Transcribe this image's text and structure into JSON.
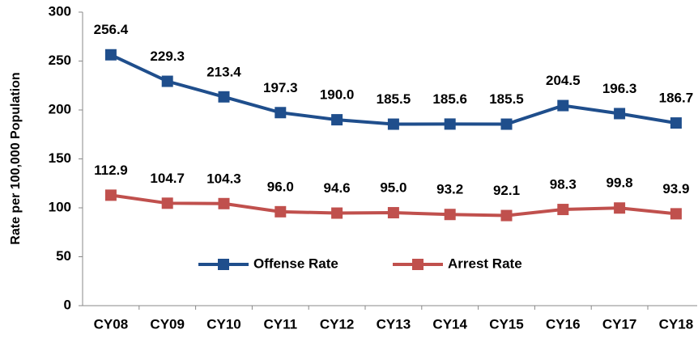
{
  "chart_data": {
    "type": "line",
    "y_axis_label": "Rate per 100,000 Population",
    "categories": [
      "CY08",
      "CY09",
      "CY10",
      "CY11",
      "CY12",
      "CY13",
      "CY14",
      "CY15",
      "CY16",
      "CY17",
      "CY18"
    ],
    "series": [
      {
        "name": "Offense Rate",
        "color": "#1f4e8c",
        "values": [
          256.4,
          229.3,
          213.4,
          197.3,
          190.0,
          185.5,
          185.6,
          185.5,
          204.5,
          196.3,
          186.7
        ],
        "value_labels": [
          "256.4",
          "229.3",
          "213.4",
          "197.3",
          "190.0",
          "185.5",
          "185.6",
          "185.5",
          "204.5",
          "196.3",
          "186.7"
        ]
      },
      {
        "name": "Arrest Rate",
        "color": "#c0504d",
        "values": [
          112.9,
          104.7,
          104.3,
          96.0,
          94.6,
          95.0,
          93.2,
          92.1,
          98.3,
          99.8,
          93.9
        ],
        "value_labels": [
          "112.9",
          "104.7",
          "104.3",
          "96.0",
          "94.6",
          "95.0",
          "93.2",
          "92.1",
          "98.3",
          "99.8",
          "93.9"
        ]
      }
    ],
    "ylim": [
      0,
      300
    ],
    "yticks": [
      0,
      50,
      100,
      150,
      200,
      250,
      300
    ],
    "grid": false,
    "legend": "center"
  }
}
